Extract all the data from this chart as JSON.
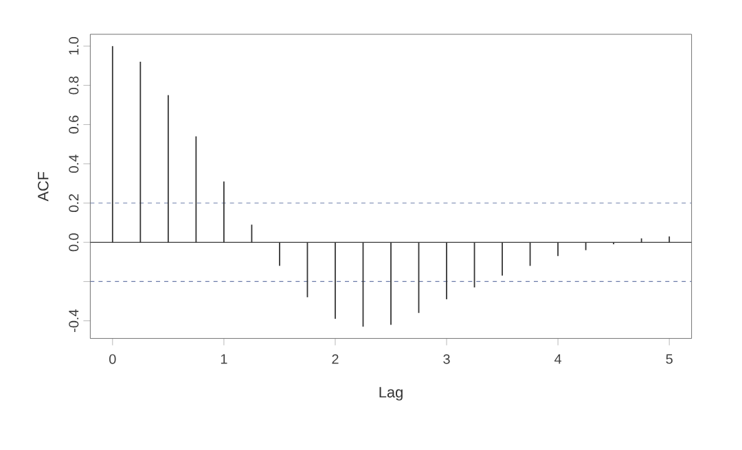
{
  "chart_data": {
    "type": "bar",
    "xlabel": "Lag",
    "ylabel": "ACF",
    "x": [
      0,
      0.25,
      0.5,
      0.75,
      1,
      1.25,
      1.5,
      1.75,
      2,
      2.25,
      2.5,
      2.75,
      3,
      3.25,
      3.5,
      3.75,
      4,
      4.25,
      4.5,
      4.75,
      5
    ],
    "values": [
      1.0,
      0.92,
      0.75,
      0.54,
      0.31,
      0.09,
      -0.12,
      -0.28,
      -0.39,
      -0.43,
      -0.42,
      -0.36,
      -0.29,
      -0.23,
      -0.17,
      -0.12,
      -0.07,
      -0.04,
      -0.01,
      0.02,
      0.03
    ],
    "color": "#333333",
    "xlim": [
      -0.2,
      5.2
    ],
    "ylim": [
      -0.49,
      1.06
    ],
    "xticks": [
      0,
      1,
      2,
      3,
      4,
      5
    ],
    "yticks": [
      {
        "value": -0.4,
        "label": "-0.4"
      },
      {
        "value": -0.2,
        "label": null
      },
      {
        "value": 0,
        "label": "0.0"
      },
      {
        "value": 0.2,
        "label": "0.2"
      },
      {
        "value": 0.4,
        "label": "0.4"
      },
      {
        "value": 0.6,
        "label": "0.6"
      },
      {
        "value": 0.8,
        "label": "0.8"
      },
      {
        "value": 1.0,
        "label": "1.0"
      }
    ],
    "ref_lines": [
      {
        "axis": "y",
        "value": 0,
        "color": "#000000",
        "line_style": "solid"
      },
      {
        "axis": "y",
        "value": 0.2,
        "color": "#6a7aa8",
        "line_style": "dashed"
      },
      {
        "axis": "y",
        "value": -0.2,
        "color": "#6a7aa8",
        "line_style": "dashed"
      }
    ],
    "grid": false
  }
}
